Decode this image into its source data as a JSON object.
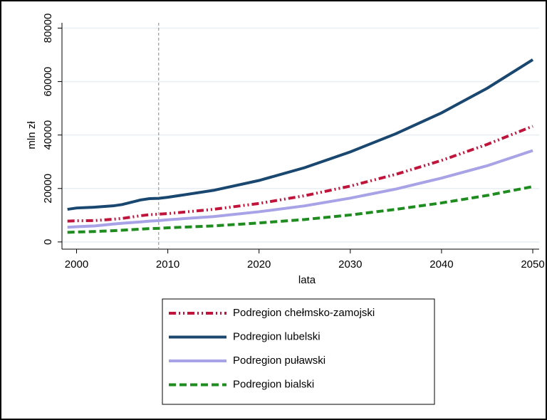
{
  "chart_data": {
    "type": "line",
    "x": [
      1999,
      2000,
      2002,
      2004,
      2005,
      2007,
      2008,
      2009,
      2010,
      2015,
      2020,
      2025,
      2030,
      2035,
      2040,
      2045,
      2050
    ],
    "series": [
      {
        "name": "Podregion chełmsko-zamojski",
        "color": "#c0143c",
        "style": "dashdotdot",
        "values": [
          7800,
          7900,
          8000,
          8500,
          8800,
          9800,
          10200,
          10400,
          10600,
          12200,
          14400,
          17300,
          20900,
          25300,
          30500,
          36500,
          43300
        ]
      },
      {
        "name": "Podregion lubelski",
        "color": "#1a476f",
        "style": "solid",
        "values": [
          12200,
          12700,
          13000,
          13500,
          14000,
          15700,
          16200,
          16300,
          16700,
          19300,
          23000,
          27800,
          33700,
          40500,
          48300,
          57500,
          68200
        ]
      },
      {
        "name": "Podregion puławski",
        "color": "#a8a2e6",
        "style": "solid",
        "values": [
          5500,
          5700,
          6000,
          6700,
          7000,
          7500,
          7800,
          8000,
          8300,
          9500,
          11300,
          13500,
          16400,
          19800,
          23900,
          28500,
          34200
        ]
      },
      {
        "name": "Podregion bialski",
        "color": "#1e8c1e",
        "style": "dash",
        "values": [
          3600,
          3700,
          3900,
          4200,
          4400,
          4800,
          5000,
          5100,
          5300,
          6000,
          7100,
          8400,
          10100,
          12200,
          14600,
          17400,
          20700
        ]
      }
    ],
    "xlabel": "lata",
    "ylabel": "mln zł",
    "xlim": [
      1998.4,
      2050.7
    ],
    "ylim": [
      -2700,
      82000
    ],
    "xticks": [
      2000,
      2010,
      2020,
      2030,
      2040,
      2050
    ],
    "yticks": [
      0,
      20000,
      40000,
      60000,
      80000
    ],
    "reference_line_x": 2009,
    "grid": true
  }
}
